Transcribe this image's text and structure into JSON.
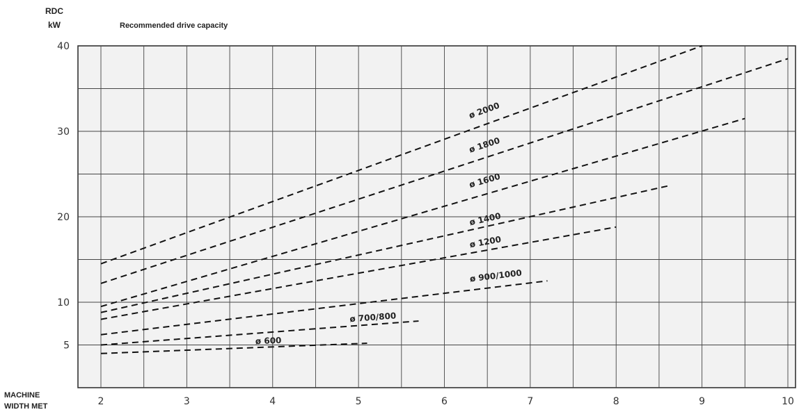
{
  "chart_data": {
    "type": "line",
    "title": "Recommended drive capacity",
    "ylabel_line1": "RDC",
    "ylabel_line2": "kW",
    "xlabel_line1": "MACHINE",
    "xlabel_line2": "WIDTH MET",
    "xlim": [
      1.7,
      10
    ],
    "ylim": [
      0,
      40
    ],
    "x_ticks": [
      2,
      3,
      4,
      5,
      6,
      7,
      8,
      9,
      10
    ],
    "y_ticks": [
      5,
      10,
      20,
      30,
      40
    ],
    "grid": true,
    "series": [
      {
        "name": "ø 600",
        "points": [
          [
            2,
            4.0
          ],
          [
            5.1,
            5.2
          ]
        ],
        "label_at": [
          3.8,
          5.1
        ]
      },
      {
        "name": "ø 700/800",
        "points": [
          [
            2,
            5.0
          ],
          [
            5.7,
            7.8
          ]
        ],
        "label_at": [
          4.9,
          7.7
        ]
      },
      {
        "name": "ø 900/1000",
        "points": [
          [
            2,
            6.2
          ],
          [
            7.2,
            12.5
          ]
        ],
        "label_at": [
          6.3,
          12.4
        ]
      },
      {
        "name": "ø 1200",
        "points": [
          [
            2,
            8.0
          ],
          [
            8.0,
            18.8
          ]
        ],
        "label_at": [
          6.3,
          16.4
        ]
      },
      {
        "name": "ø 1400",
        "points": [
          [
            2,
            8.8
          ],
          [
            8.6,
            23.6
          ]
        ],
        "label_at": [
          6.3,
          19.0
        ]
      },
      {
        "name": "ø 1600",
        "points": [
          [
            2,
            9.5
          ],
          [
            9.5,
            31.5
          ]
        ],
        "label_at": [
          6.3,
          23.4
        ]
      },
      {
        "name": "ø 1800",
        "points": [
          [
            2,
            12.2
          ],
          [
            10.0,
            38.5
          ]
        ],
        "label_at": [
          6.3,
          27.5
        ]
      },
      {
        "name": "ø 2000",
        "points": [
          [
            2,
            14.5
          ],
          [
            9.0,
            40.0
          ]
        ],
        "label_at": [
          6.3,
          31.5
        ]
      }
    ]
  }
}
